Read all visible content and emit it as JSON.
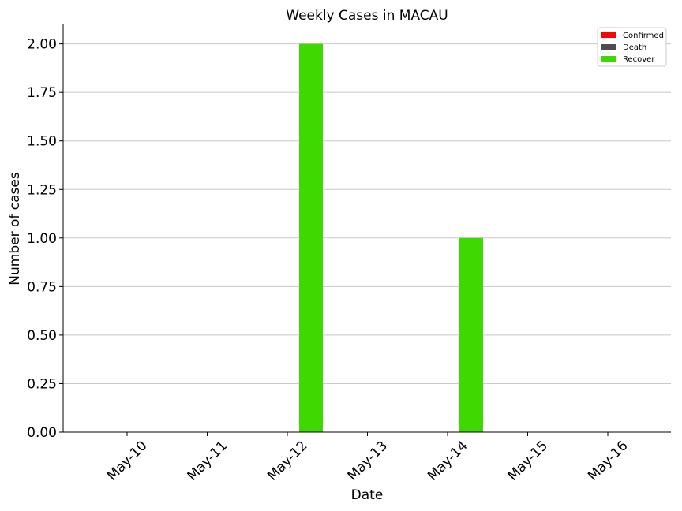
{
  "chart_data": {
    "type": "bar",
    "title": "Weekly Cases in MACAU",
    "xlabel": "Date",
    "ylabel": "Number of cases",
    "categories": [
      "May-10",
      "May-11",
      "May-12",
      "May-13",
      "May-14",
      "May-15",
      "May-16"
    ],
    "series": [
      {
        "name": "Confirmed",
        "color": "#ff0000",
        "values": [
          0,
          0,
          0,
          0,
          0,
          0,
          0
        ]
      },
      {
        "name": "Death",
        "color": "#4d4d4d",
        "values": [
          0,
          0,
          0,
          0,
          0,
          0,
          0
        ]
      },
      {
        "name": "Recover",
        "color": "#3dd900",
        "values": [
          0,
          0,
          2,
          0,
          1,
          0,
          0
        ]
      }
    ],
    "ylim": [
      0,
      2.1
    ],
    "yticks": [
      0,
      0.25,
      0.5,
      0.75,
      1.0,
      1.25,
      1.5,
      1.75,
      2.0
    ],
    "ytick_labels": [
      "0.00",
      "0.25",
      "0.50",
      "0.75",
      "1.00",
      "1.25",
      "1.50",
      "1.75",
      "2.00"
    ],
    "grid": "horizontal",
    "legend_position": "top-right"
  }
}
